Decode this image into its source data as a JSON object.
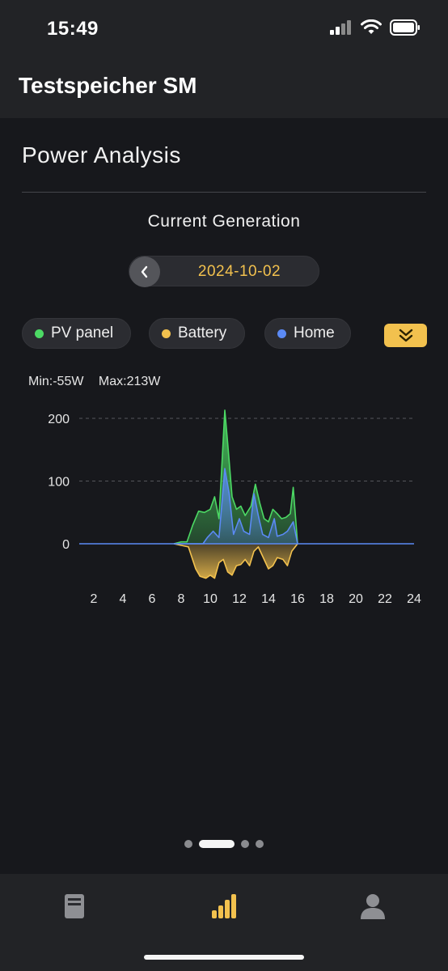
{
  "status": {
    "time": "15:49"
  },
  "header": {
    "title": "Testspeicher SM"
  },
  "section": {
    "title": "Power Analysis",
    "subtitle": "Current Generation"
  },
  "date": {
    "value": "2024-10-02"
  },
  "legend": [
    {
      "label": "PV panel",
      "color": "#4cd964"
    },
    {
      "label": "Battery",
      "color": "#f2c14e"
    },
    {
      "label": "Home",
      "color": "#5b8af5"
    }
  ],
  "stats": {
    "min": "Min:-55W",
    "max": "Max:213W"
  },
  "chart_data": {
    "type": "area",
    "y_ticks": [
      "200",
      "100",
      "0"
    ],
    "x_ticks": [
      "2",
      "4",
      "6",
      "8",
      "10",
      "12",
      "14",
      "16",
      "18",
      "20",
      "22",
      "24"
    ],
    "xlim": [
      1,
      24
    ],
    "ylim": [
      -80,
      220
    ],
    "grid": "horizontal dashed",
    "series": [
      {
        "name": "PV panel",
        "color": "#4cd964",
        "points": [
          [
            7.5,
            0
          ],
          [
            8,
            3
          ],
          [
            8.4,
            3
          ],
          [
            8.8,
            30
          ],
          [
            9.2,
            52
          ],
          [
            9.6,
            50
          ],
          [
            10,
            55
          ],
          [
            10.3,
            75
          ],
          [
            10.6,
            40
          ],
          [
            11,
            213
          ],
          [
            11.2,
            160
          ],
          [
            11.5,
            75
          ],
          [
            11.8,
            55
          ],
          [
            12.1,
            60
          ],
          [
            12.4,
            45
          ],
          [
            12.8,
            60
          ],
          [
            13.1,
            95
          ],
          [
            13.4,
            65
          ],
          [
            13.7,
            40
          ],
          [
            14,
            35
          ],
          [
            14.3,
            55
          ],
          [
            14.6,
            48
          ],
          [
            14.9,
            40
          ],
          [
            15.2,
            42
          ],
          [
            15.5,
            48
          ],
          [
            15.7,
            90
          ],
          [
            16,
            0
          ]
        ]
      },
      {
        "name": "Battery",
        "color": "#f2c14e",
        "points": [
          [
            7.5,
            0
          ],
          [
            8.5,
            -5
          ],
          [
            9,
            -40
          ],
          [
            9.3,
            -52
          ],
          [
            9.7,
            -55
          ],
          [
            10,
            -50
          ],
          [
            10.3,
            -55
          ],
          [
            10.6,
            -30
          ],
          [
            10.9,
            -25
          ],
          [
            11.2,
            -45
          ],
          [
            11.5,
            -50
          ],
          [
            11.8,
            -35
          ],
          [
            12.1,
            -33
          ],
          [
            12.4,
            -25
          ],
          [
            12.7,
            -35
          ],
          [
            13,
            -12
          ],
          [
            13.3,
            -5
          ],
          [
            13.6,
            -20
          ],
          [
            14,
            -40
          ],
          [
            14.3,
            -35
          ],
          [
            14.6,
            -22
          ],
          [
            15,
            -25
          ],
          [
            15.3,
            -35
          ],
          [
            15.6,
            -12
          ],
          [
            16,
            0
          ]
        ]
      },
      {
        "name": "Home",
        "color": "#5b8af5",
        "points": [
          [
            7.5,
            0
          ],
          [
            9.5,
            0
          ],
          [
            9.8,
            10
          ],
          [
            10.2,
            20
          ],
          [
            10.6,
            10
          ],
          [
            11,
            120
          ],
          [
            11.3,
            80
          ],
          [
            11.6,
            15
          ],
          [
            12,
            40
          ],
          [
            12.3,
            20
          ],
          [
            12.7,
            15
          ],
          [
            13,
            80
          ],
          [
            13.3,
            45
          ],
          [
            13.6,
            15
          ],
          [
            14,
            10
          ],
          [
            14.4,
            40
          ],
          [
            14.6,
            12
          ],
          [
            15,
            15
          ],
          [
            15.3,
            20
          ],
          [
            15.7,
            35
          ],
          [
            16,
            0
          ]
        ]
      }
    ]
  }
}
